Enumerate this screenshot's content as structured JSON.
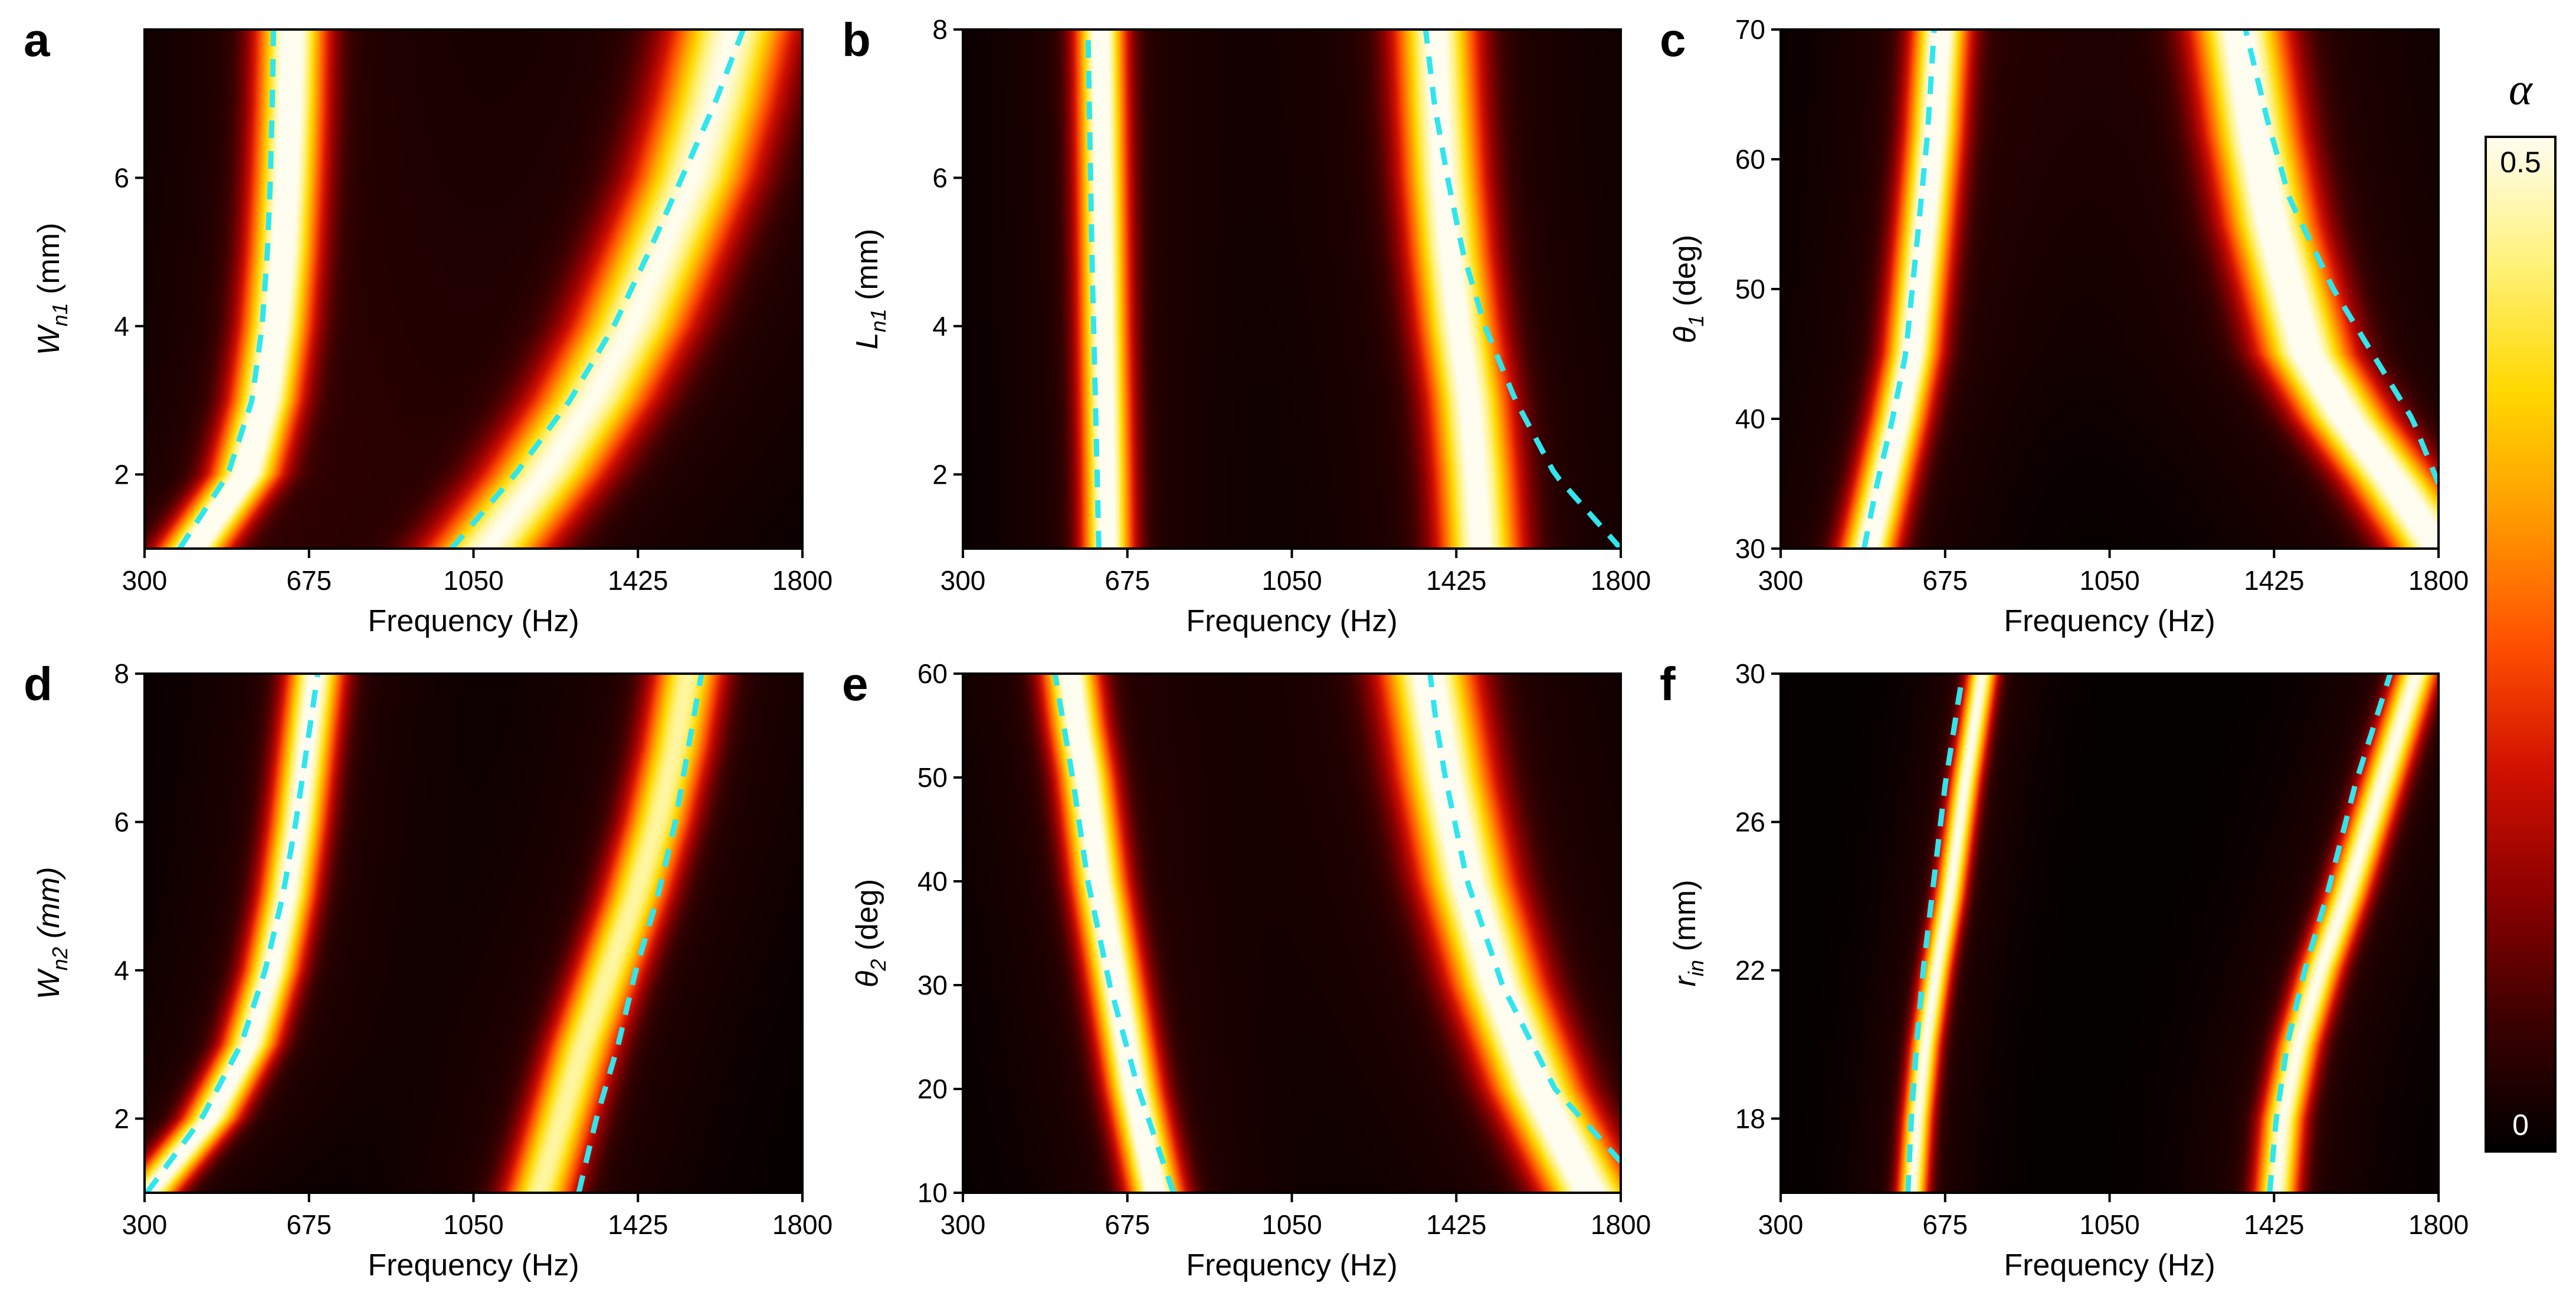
{
  "figure": {
    "colorbar": {
      "title": "α",
      "max_label": "0.5",
      "min_label": "0",
      "range": [
        0,
        0.5
      ],
      "colormap": "hot",
      "stops": [
        "#000000",
        "#3a0000",
        "#8a0000",
        "#d01000",
        "#ff5000",
        "#ff9a00",
        "#ffd800",
        "#fff27a",
        "#fffdf0"
      ]
    },
    "dashed_line_color": "#2ee6ee"
  },
  "chart_data": [
    {
      "id": "a",
      "type": "heatmap",
      "letter": "a",
      "xlabel": "Frequency (Hz)",
      "ylabel": {
        "base": "W",
        "sub": "n1",
        "italic_base": true,
        "suffix": " (mm)"
      },
      "xlim": [
        300,
        1800
      ],
      "ylim": [
        1,
        8
      ],
      "xticks": [
        300,
        675,
        1050,
        1425,
        1800
      ],
      "xtick_labels": [
        "300",
        "675",
        "1050",
        "1425",
        "1800"
      ],
      "yticks": [
        2,
        4,
        6
      ],
      "ytick_labels": [
        "2",
        "4",
        "6"
      ],
      "series": [
        {
          "name": "mode 1 simulated",
          "style": "band",
          "width_hz": 55,
          "peak": 0.5,
          "x": [
            410,
            530,
            575,
            600,
            615,
            625,
            632,
            636
          ],
          "y": [
            1,
            2,
            3,
            4,
            5,
            6,
            7,
            8
          ]
        },
        {
          "name": "mode 2 simulated",
          "style": "band",
          "width_hz": 95,
          "peak": 0.46,
          "x": [
            1080,
            1210,
            1320,
            1410,
            1480,
            1550,
            1600,
            1640
          ],
          "y": [
            1,
            2,
            3,
            4,
            5,
            6,
            7,
            8
          ]
        },
        {
          "name": "mode 1 theory",
          "style": "dashed",
          "x": [
            380,
            490,
            545,
            568,
            580,
            587,
            591,
            594
          ],
          "y": [
            1,
            2,
            3,
            4,
            5,
            6,
            7,
            8
          ]
        },
        {
          "name": "mode 2 theory",
          "style": "dashed",
          "x": [
            1000,
            1145,
            1270,
            1370,
            1450,
            1525,
            1600,
            1665
          ],
          "y": [
            1,
            2,
            3,
            4,
            5,
            6,
            7,
            8
          ]
        }
      ]
    },
    {
      "id": "b",
      "type": "heatmap",
      "letter": "b",
      "xlabel": "Frequency (Hz)",
      "ylabel": {
        "base": "L",
        "sub": "n1",
        "italic_base": true,
        "suffix": " (mm)"
      },
      "xlim": [
        300,
        1800
      ],
      "ylim": [
        1,
        8
      ],
      "xticks": [
        300,
        675,
        1050,
        1425,
        1800
      ],
      "xtick_labels": [
        "300",
        "675",
        "1050",
        "1425",
        "1800"
      ],
      "yticks": [
        2,
        4,
        6,
        8
      ],
      "ytick_labels": [
        "2",
        "4",
        "6",
        "8"
      ],
      "series": [
        {
          "name": "mode 1 simulated",
          "style": "band",
          "width_hz": 40,
          "peak": 0.5,
          "x": [
            630,
            628,
            625,
            622,
            620,
            618,
            616,
            614
          ],
          "y": [
            1,
            2,
            3,
            4,
            5,
            6,
            7,
            8
          ]
        },
        {
          "name": "mode 2 simulated",
          "style": "band",
          "width_hz": 65,
          "peak": 0.48,
          "x": [
            1480,
            1470,
            1455,
            1430,
            1410,
            1395,
            1385,
            1378
          ],
          "y": [
            1,
            2,
            3,
            4,
            5,
            6,
            7,
            8
          ]
        },
        {
          "name": "mode 1 theory",
          "style": "dashed",
          "x": [
            610,
            606,
            602,
            598,
            594,
            591,
            588,
            585
          ],
          "y": [
            1,
            2,
            3,
            4,
            5,
            6,
            7,
            8
          ]
        },
        {
          "name": "mode 2 theory",
          "style": "dashed",
          "x": [
            1800,
            1650,
            1560,
            1490,
            1440,
            1405,
            1375,
            1355
          ],
          "y": [
            1,
            2,
            3,
            4,
            5,
            6,
            7,
            8
          ]
        }
      ]
    },
    {
      "id": "c",
      "type": "heatmap",
      "letter": "c",
      "xlabel": "Frequency (Hz)",
      "ylabel": {
        "base": "θ",
        "sub": "1",
        "italic_base": true,
        "suffix": " (deg)"
      },
      "xlim": [
        300,
        1800
      ],
      "ylim": [
        30,
        70
      ],
      "xticks": [
        300,
        675,
        1050,
        1425,
        1800
      ],
      "xtick_labels": [
        "300",
        "675",
        "1050",
        "1425",
        "1800"
      ],
      "yticks": [
        30,
        40,
        50,
        60,
        70
      ],
      "ytick_labels": [
        "30",
        "40",
        "50",
        "60",
        "70"
      ],
      "series": [
        {
          "name": "mode 1 simulated",
          "style": "band",
          "width_hz": 45,
          "peak": 0.5,
          "x": [
            500,
            535,
            570,
            600,
            630,
            650,
            665
          ],
          "y": [
            30,
            35,
            40,
            45,
            55,
            62,
            70
          ]
        },
        {
          "name": "mode 2 simulated",
          "style": "band",
          "width_hz": 75,
          "peak": 0.5,
          "x": [
            1800,
            1700,
            1590,
            1500,
            1420,
            1380,
            1345
          ],
          "y": [
            30,
            35,
            40,
            45,
            55,
            62,
            70
          ]
        },
        {
          "name": "mode 1 theory",
          "style": "dashed",
          "x": [
            490,
            520,
            555,
            585,
            615,
            635,
            650
          ],
          "y": [
            30,
            35,
            40,
            45,
            55,
            62,
            70
          ]
        },
        {
          "name": "mode 2 theory",
          "style": "dashed",
          "x": [
            1800,
            1740,
            1650,
            1560,
            1460,
            1410,
            1360
          ],
          "y": [
            35,
            40,
            45,
            50,
            57,
            63,
            70
          ]
        }
      ]
    },
    {
      "id": "d",
      "type": "heatmap",
      "letter": "d",
      "xlabel": "Frequency (Hz)",
      "ylabel": {
        "base": "W",
        "sub": "n2",
        "italic_base": true,
        "suffix": " (mm)",
        "italic_suffix": true
      },
      "xlim": [
        300,
        1800
      ],
      "ylim": [
        1,
        8
      ],
      "xticks": [
        300,
        675,
        1050,
        1425,
        1800
      ],
      "xtick_labels": [
        "300",
        "675",
        "1050",
        "1425",
        "1800"
      ],
      "yticks": [
        2,
        4,
        6,
        8
      ],
      "ytick_labels": [
        "2",
        "4",
        "6",
        "8"
      ],
      "series": [
        {
          "name": "mode 1 simulated",
          "style": "band",
          "width_hz": 45,
          "peak": 0.48,
          "x": [
            310,
            450,
            540,
            590,
            625,
            650,
            670,
            690
          ],
          "y": [
            1,
            2,
            3,
            4,
            5,
            6,
            7,
            8
          ]
        },
        {
          "name": "mode 2 simulated",
          "style": "band",
          "width_hz": 55,
          "peak": 0.42,
          "x": [
            1200,
            1250,
            1300,
            1360,
            1420,
            1470,
            1510,
            1540
          ],
          "y": [
            1,
            2,
            3,
            4,
            5,
            6,
            7,
            8
          ]
        },
        {
          "name": "mode 1 theory",
          "style": "dashed",
          "x": [
            305,
            430,
            520,
            575,
            615,
            645,
            670,
            695
          ],
          "y": [
            1,
            2,
            3,
            4,
            5,
            6,
            7,
            8
          ]
        },
        {
          "name": "mode 2 theory",
          "style": "dashed",
          "x": [
            1290,
            1330,
            1380,
            1420,
            1470,
            1510,
            1540,
            1570
          ],
          "y": [
            1,
            2,
            3,
            4,
            5,
            6,
            7,
            8
          ]
        }
      ]
    },
    {
      "id": "e",
      "type": "heatmap",
      "letter": "e",
      "xlabel": "Frequency (Hz)",
      "ylabel": {
        "base": "θ",
        "sub": "2",
        "italic_base": true,
        "suffix": " (deg)"
      },
      "xlim": [
        300,
        1800
      ],
      "ylim": [
        10,
        60
      ],
      "xticks": [
        300,
        675,
        1050,
        1425,
        1800
      ],
      "xtick_labels": [
        "300",
        "675",
        "1050",
        "1425",
        "1800"
      ],
      "yticks": [
        10,
        20,
        30,
        40,
        50,
        60
      ],
      "ytick_labels": [
        "10",
        "20",
        "30",
        "40",
        "50",
        "60"
      ],
      "series": [
        {
          "name": "mode 1 simulated",
          "style": "band",
          "width_hz": 45,
          "peak": 0.5,
          "x": [
            740,
            690,
            650,
            610,
            580,
            560,
            545
          ],
          "y": [
            10,
            20,
            30,
            40,
            50,
            55,
            60
          ]
        },
        {
          "name": "mode 2 simulated",
          "style": "band",
          "width_hz": 75,
          "peak": 0.5,
          "x": [
            1730,
            1610,
            1520,
            1450,
            1400,
            1380,
            1360
          ],
          "y": [
            10,
            20,
            30,
            40,
            50,
            55,
            60
          ]
        },
        {
          "name": "mode 1 theory",
          "style": "dashed",
          "x": [
            780,
            700,
            635,
            585,
            550,
            530,
            510
          ],
          "y": [
            10,
            20,
            30,
            40,
            50,
            55,
            60
          ]
        },
        {
          "name": "mode 2 theory",
          "style": "dashed",
          "x": [
            1800,
            1650,
            1530,
            1450,
            1400,
            1380,
            1365
          ],
          "y": [
            13,
            20,
            30,
            40,
            50,
            55,
            60
          ]
        }
      ]
    },
    {
      "id": "f",
      "type": "heatmap",
      "letter": "f",
      "xlabel": "Frequency (Hz)",
      "ylabel": {
        "base": "r",
        "sub": "in",
        "italic_base": true,
        "suffix": " (mm)"
      },
      "xlim": [
        300,
        1800
      ],
      "ylim": [
        16,
        30
      ],
      "xticks": [
        300,
        675,
        1050,
        1425,
        1800
      ],
      "xtick_labels": [
        "300",
        "675",
        "1050",
        "1425",
        "1800"
      ],
      "yticks": [
        18,
        22,
        26,
        30
      ],
      "ytick_labels": [
        "18",
        "22",
        "26",
        "30"
      ],
      "series": [
        {
          "name": "mode 1 simulated",
          "style": "band",
          "width_hz": 24,
          "peak": 0.46,
          "x": [
            600,
            612,
            630,
            655,
            685,
            720,
            760
          ],
          "y": [
            16,
            18,
            20,
            22,
            24,
            27,
            30
          ]
        },
        {
          "name": "mode 2 simulated",
          "style": "band",
          "width_hz": 35,
          "peak": 0.46,
          "x": [
            1430,
            1445,
            1480,
            1530,
            1590,
            1670,
            1750
          ],
          "y": [
            16,
            18,
            20,
            22,
            24,
            27,
            30
          ]
        },
        {
          "name": "mode 1 theory",
          "style": "dashed",
          "x": [
            590,
            598,
            610,
            625,
            645,
            675,
            715
          ],
          "y": [
            16,
            18,
            20,
            22,
            24,
            27,
            30
          ]
        },
        {
          "name": "mode 2 theory",
          "style": "dashed",
          "x": [
            1415,
            1430,
            1455,
            1495,
            1545,
            1610,
            1690
          ],
          "y": [
            16,
            18,
            20,
            22,
            24,
            27,
            30
          ]
        }
      ]
    }
  ]
}
